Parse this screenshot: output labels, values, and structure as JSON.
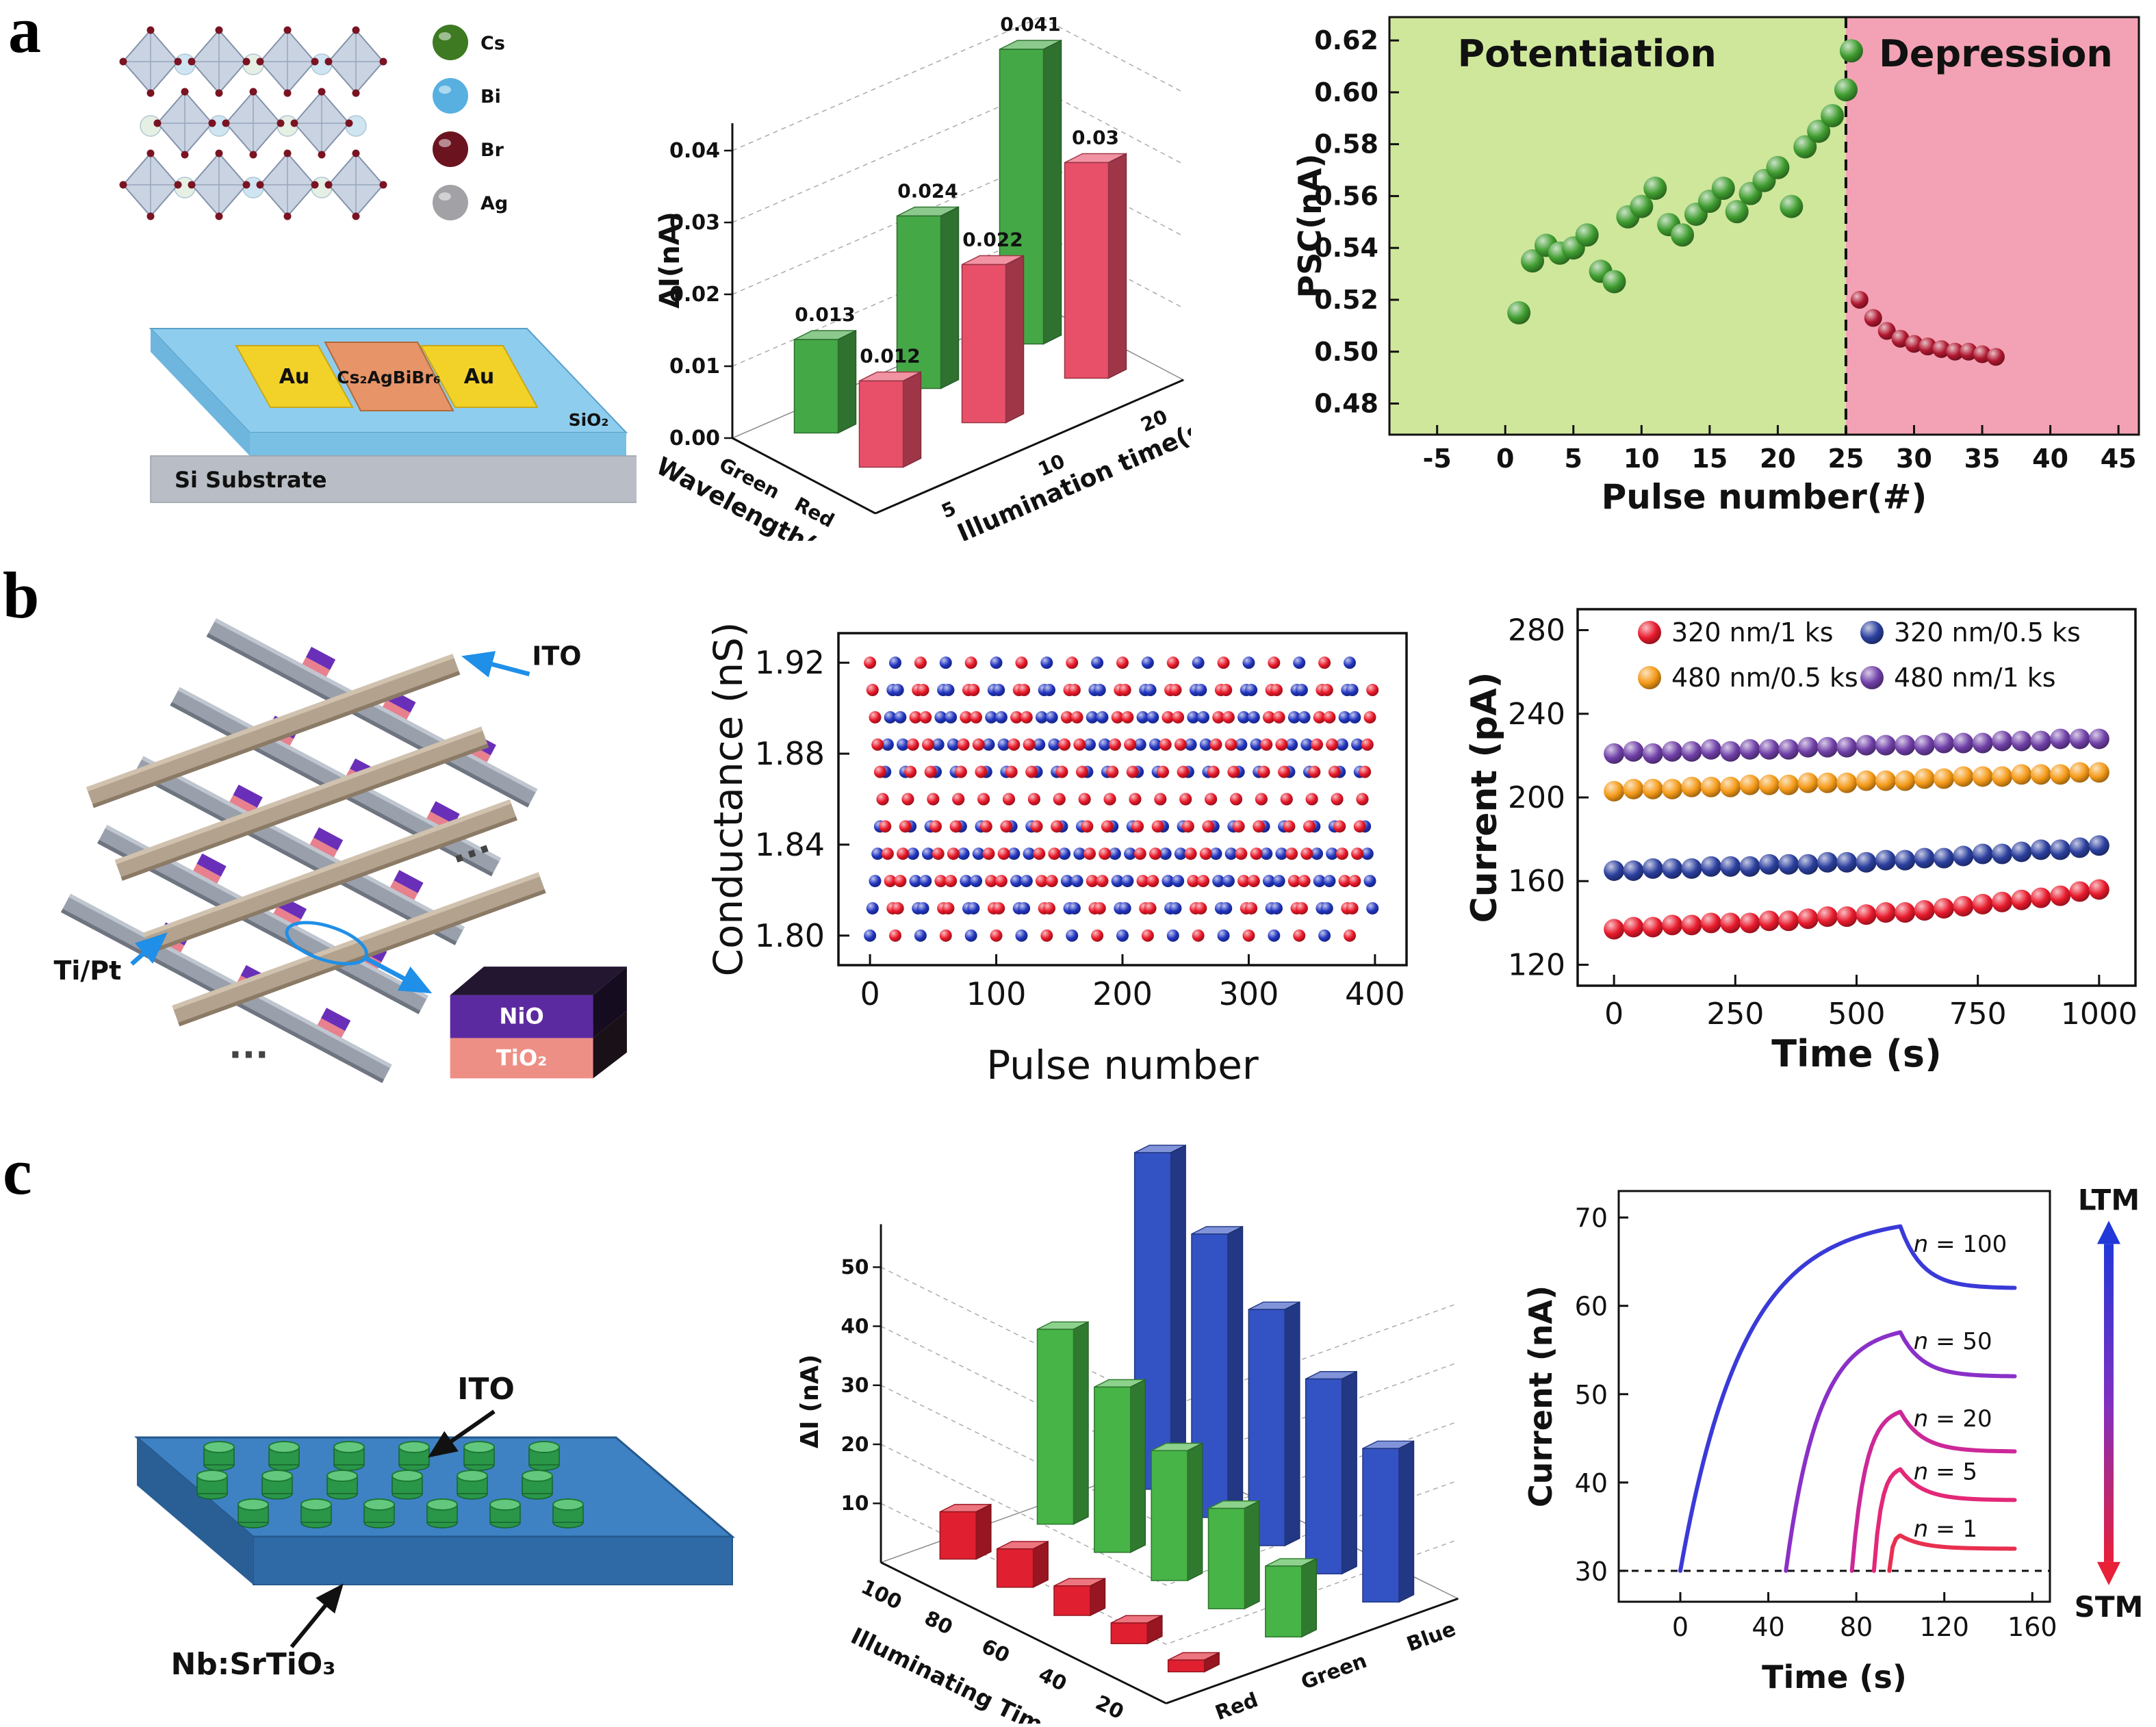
{
  "figure": {
    "panel_a": {
      "label": "a",
      "schematic": {
        "legend": [
          {
            "label": "Cs",
            "color": "#3d7a22"
          },
          {
            "label": "Bi",
            "color": "#58b0e0"
          },
          {
            "label": "Br",
            "color": "#6b1420"
          },
          {
            "label": "Ag",
            "color": "#a2a2a6"
          }
        ],
        "electrode": "Au",
        "channel": "Cs₂AgBiBr₆",
        "substrate": "Si Substrate",
        "oxide": "SiO₂"
      }
    },
    "panel_b": {
      "label": "b",
      "schematic": {
        "top_electrode": "ITO",
        "bottom_electrode": "Ti/Pt",
        "layer1": "NiO",
        "layer2": "TiO₂",
        "ellipsis": "···"
      }
    },
    "panel_c": {
      "label": "c",
      "schematic": {
        "electrode": "ITO",
        "substrate": "Nb:SrTiO₃"
      }
    }
  },
  "chart_data": [
    {
      "id": "a_bar3d",
      "type": "bar3d",
      "zlabel": "ΔI(nA)",
      "axis1_label": "Wavelength(nm)",
      "axis2_label": "Illumination time(s)",
      "zticks": [
        "0.00",
        "0.01",
        "0.02",
        "0.03",
        "0.04"
      ],
      "zmax": 0.04,
      "times": [
        "5",
        "10",
        "20"
      ],
      "series": [
        {
          "name": "Green",
          "color": "#45a846",
          "values": [
            0.013,
            0.024,
            0.041
          ],
          "labels": [
            "0.013",
            "0.024",
            "0.041"
          ]
        },
        {
          "name": "Red",
          "color": "#e8506a",
          "values": [
            0.012,
            0.022,
            0.03
          ],
          "labels": [
            "0.012",
            "0.022",
            "0.03"
          ]
        }
      ]
    },
    {
      "id": "a_psc",
      "type": "scatter",
      "xlabel": "Pulse number(#)",
      "ylabel": "PSC(nA)",
      "xlim": [
        -8.5,
        46.5
      ],
      "ylim": [
        0.468,
        0.629
      ],
      "xticks": [
        -5,
        0,
        5,
        10,
        15,
        20,
        25,
        30,
        35,
        40,
        45
      ],
      "yticks": [
        0.48,
        0.5,
        0.52,
        0.54,
        0.56,
        0.58,
        0.6,
        0.62
      ],
      "divider_x": 25,
      "regions": [
        {
          "label": "Potentiation",
          "xrange": [
            -8.5,
            25
          ],
          "color": "#cfe79b",
          "text_color": "#1fa02f"
        },
        {
          "label": "Depression",
          "xrange": [
            25,
            46.5
          ],
          "color": "#f2a2b4",
          "text_color": "#d62246"
        }
      ],
      "series": [
        {
          "name": "potentiation-points",
          "color": "#3f9c2f",
          "x": [
            1,
            2,
            3,
            4,
            5,
            6,
            7,
            8,
            9,
            10,
            11,
            12,
            13,
            14,
            15,
            16,
            17,
            18,
            19,
            20,
            21,
            22,
            23,
            24,
            25,
            25.4
          ],
          "y": [
            0.515,
            0.535,
            0.541,
            0.538,
            0.54,
            0.545,
            0.531,
            0.527,
            0.552,
            0.556,
            0.563,
            0.549,
            0.545,
            0.553,
            0.558,
            0.563,
            0.554,
            0.561,
            0.566,
            0.571,
            0.556,
            0.579,
            0.585,
            0.591,
            0.601,
            0.616
          ]
        },
        {
          "name": "depression-points",
          "color": "#b01830",
          "x": [
            26,
            27,
            28,
            29,
            30,
            31,
            32,
            33,
            34,
            35,
            36
          ],
          "y": [
            0.52,
            0.513,
            0.508,
            0.505,
            0.503,
            0.502,
            0.501,
            0.5,
            0.5,
            0.499,
            0.498
          ]
        }
      ]
    },
    {
      "id": "b_conductance",
      "type": "wave_scatter",
      "xlabel": "Pulse number",
      "ylabel": "Conductance (nS)",
      "xlim": [
        -25,
        425
      ],
      "ylim": [
        1.787,
        1.933
      ],
      "xticks": [
        0,
        100,
        200,
        300,
        400
      ],
      "yticks": [
        1.8,
        1.84,
        1.88,
        1.92
      ],
      "wave": {
        "x_start": 0,
        "x_end": 400,
        "cycles": 10,
        "points_per_cycle": 20,
        "min": 1.8,
        "max": 1.92,
        "red_phase_offset": 10
      },
      "series": [
        {
          "name": "red-points",
          "color": "#e81828"
        },
        {
          "name": "blue-points",
          "color": "#2135c0"
        }
      ]
    },
    {
      "id": "b_current",
      "type": "scatter_series",
      "xlabel": "Time (s)",
      "ylabel": "Current (pA)",
      "xlim": [
        -75,
        1075
      ],
      "ylim": [
        110,
        290
      ],
      "xticks": [
        0,
        250,
        500,
        750,
        1000
      ],
      "yticks": [
        120,
        160,
        200,
        240,
        280
      ],
      "x_values": [
        0,
        40,
        80,
        120,
        160,
        200,
        240,
        280,
        320,
        360,
        400,
        440,
        480,
        520,
        560,
        600,
        640,
        680,
        720,
        760,
        800,
        840,
        880,
        920,
        960,
        1000
      ],
      "series": [
        {
          "name": "320 nm/1 ks",
          "color": "#e81a2c",
          "values": [
            137,
            138,
            138,
            139,
            139,
            140,
            140,
            140,
            141,
            141,
            142,
            143,
            143,
            144,
            145,
            145,
            146,
            147,
            148,
            149,
            150,
            151,
            152,
            153,
            155,
            156
          ]
        },
        {
          "name": "320 nm/0.5 ks",
          "color": "#2b3f9e",
          "values": [
            165,
            165,
            166,
            166,
            166,
            167,
            167,
            167,
            168,
            168,
            168,
            169,
            169,
            169,
            170,
            170,
            171,
            171,
            172,
            173,
            173,
            174,
            175,
            175,
            176,
            177
          ]
        },
        {
          "name": "480 nm/0.5 ks",
          "color": "#f59a18",
          "values": [
            203,
            204,
            204,
            204,
            205,
            205,
            205,
            206,
            206,
            206,
            207,
            207,
            207,
            208,
            208,
            208,
            209,
            209,
            210,
            210,
            210,
            211,
            211,
            211,
            212,
            212
          ]
        },
        {
          "name": "480 nm/1 ks",
          "color": "#7040a8",
          "values": [
            221,
            222,
            221,
            222,
            222,
            223,
            222,
            223,
            223,
            223,
            224,
            224,
            224,
            225,
            225,
            225,
            225,
            226,
            226,
            226,
            227,
            227,
            227,
            228,
            228,
            228
          ]
        }
      ]
    },
    {
      "id": "c_bar3d",
      "type": "bar3d",
      "zlabel": "ΔI (nA)",
      "axis1_label": "Illuminating Time (s)",
      "zticks": [
        10,
        20,
        30,
        40,
        50
      ],
      "zmax": 55,
      "times": [
        100,
        80,
        60,
        40,
        20
      ],
      "series": [
        {
          "name": "Red",
          "color": "#e02030",
          "values": [
            8,
            6.5,
            5,
            3.5,
            2
          ]
        },
        {
          "name": "Green",
          "color": "#46b446",
          "values": [
            33,
            28,
            22,
            17,
            12
          ]
        },
        {
          "name": "Blue",
          "color": "#3353c4",
          "values": [
            57,
            48,
            40,
            33,
            26
          ]
        }
      ]
    },
    {
      "id": "c_retention",
      "type": "lines",
      "xlabel": "Time (s)",
      "ylabel": "Current (nA)",
      "xlim": [
        -28,
        168
      ],
      "ylim": [
        26.5,
        73
      ],
      "xticks": [
        0,
        40,
        80,
        120,
        160
      ],
      "yticks": [
        30,
        40,
        50,
        60,
        70
      ],
      "baseline": 30,
      "t_end": 152,
      "curves": [
        {
          "label": "n = 100",
          "t_start": 0,
          "t_peak": 100,
          "peak": 69,
          "plateau": 62,
          "color": "#3a3ad8"
        },
        {
          "label": "n = 50",
          "t_start": 48,
          "t_peak": 100,
          "peak": 57,
          "plateau": 52,
          "color": "#8a30c8"
        },
        {
          "label": "n = 20",
          "t_start": 78,
          "t_peak": 100,
          "peak": 48,
          "plateau": 43.5,
          "color": "#cc2898"
        },
        {
          "label": "n = 5",
          "t_start": 88,
          "t_peak": 100,
          "peak": 41.5,
          "plateau": 38,
          "color": "#e42878"
        },
        {
          "label": "n = 1",
          "t_start": 95,
          "t_peak": 100,
          "peak": 34,
          "plateau": 32.5,
          "color": "#e8304f"
        }
      ],
      "annotations": {
        "ltm": "LTM",
        "stm": "STM"
      }
    }
  ]
}
